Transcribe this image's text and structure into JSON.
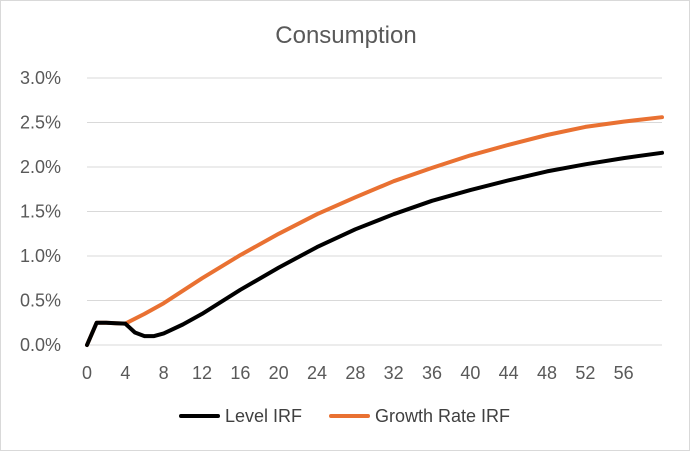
{
  "chart_data": {
    "type": "line",
    "title": "Consumption",
    "xlabel": "",
    "ylabel": "",
    "x_ticks": [
      "0",
      "4",
      "8",
      "12",
      "16",
      "20",
      "24",
      "28",
      "32",
      "36",
      "40",
      "44",
      "48",
      "52",
      "56"
    ],
    "y_ticks": [
      "0.0%",
      "0.5%",
      "1.0%",
      "1.5%",
      "2.0%",
      "2.5%",
      "3.0%"
    ],
    "xlim": [
      0,
      60
    ],
    "ylim": [
      0,
      3.0
    ],
    "grid": "horizontal",
    "legend_position": "bottom",
    "series": [
      {
        "name": "Level IRF",
        "color": "#000000",
        "x": [
          0,
          1,
          2,
          3,
          4,
          5,
          6,
          7,
          8,
          10,
          12,
          16,
          20,
          24,
          28,
          32,
          36,
          40,
          44,
          48,
          52,
          56,
          60
        ],
        "values": [
          0,
          0.25,
          0.25,
          0.245,
          0.24,
          0.14,
          0.1,
          0.1,
          0.13,
          0.23,
          0.35,
          0.62,
          0.87,
          1.1,
          1.3,
          1.47,
          1.62,
          1.74,
          1.85,
          1.95,
          2.03,
          2.1,
          2.16
        ]
      },
      {
        "name": "Growth Rate IRF",
        "color": "#E97132",
        "x": [
          0,
          1,
          2,
          3,
          4,
          6,
          8,
          12,
          16,
          20,
          24,
          28,
          32,
          36,
          40,
          44,
          48,
          52,
          56,
          60
        ],
        "values": [
          0,
          0.25,
          0.25,
          0.245,
          0.24,
          0.35,
          0.47,
          0.75,
          1.01,
          1.25,
          1.47,
          1.66,
          1.84,
          1.99,
          2.13,
          2.25,
          2.36,
          2.45,
          2.51,
          2.56
        ]
      }
    ]
  }
}
